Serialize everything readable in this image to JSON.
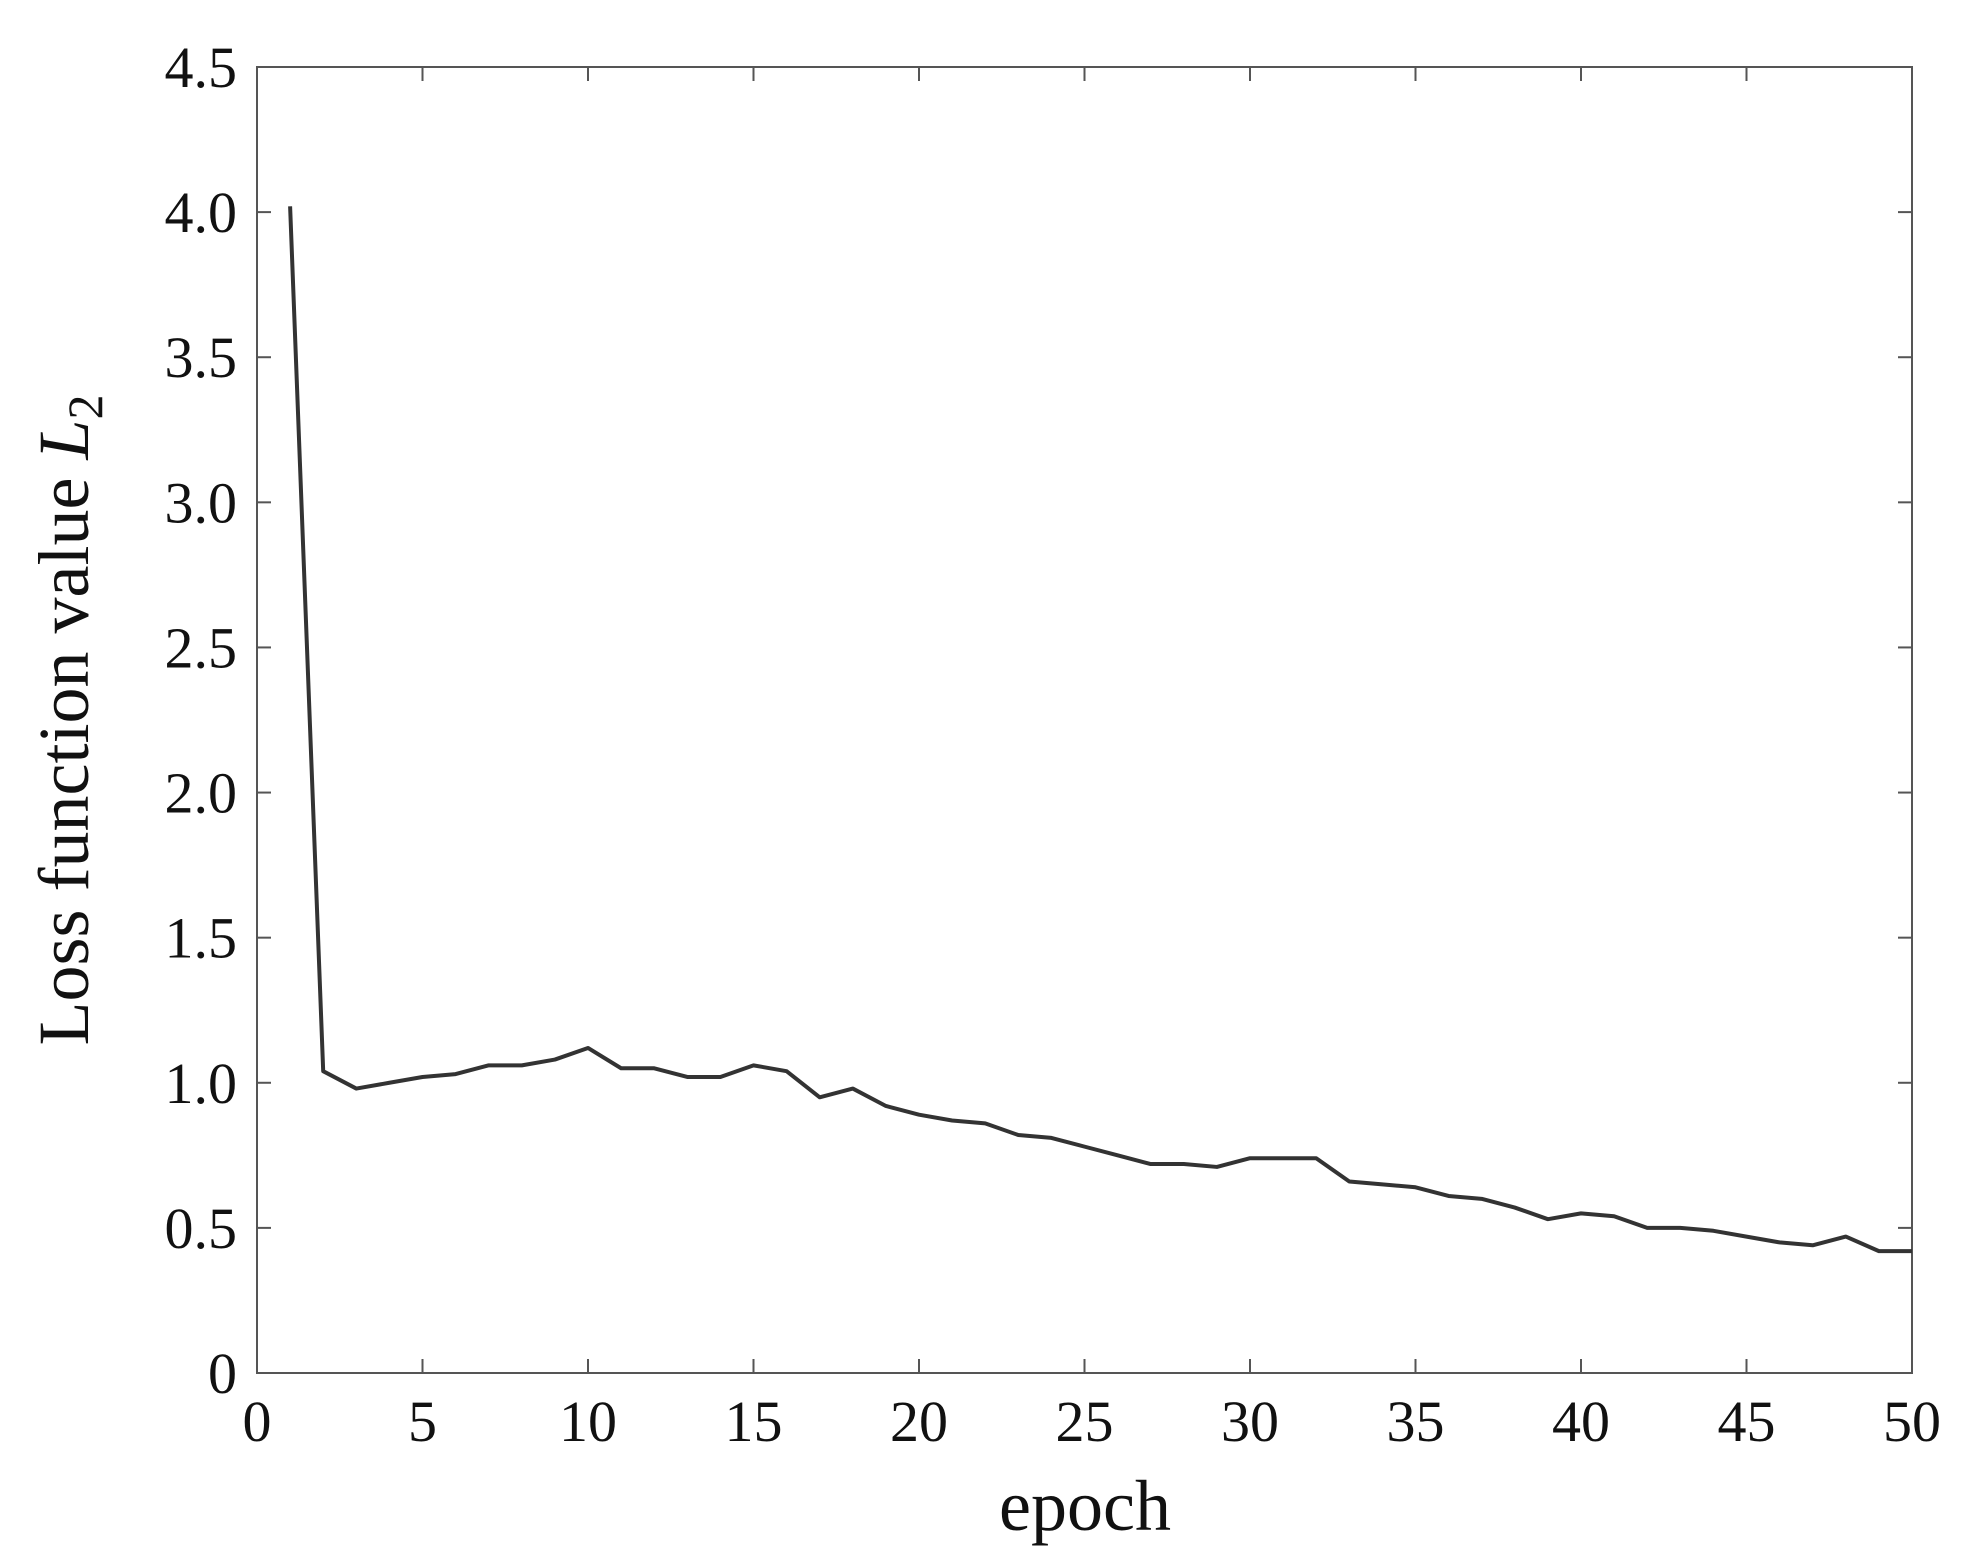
{
  "chart_data": {
    "type": "line",
    "xlabel": "epoch",
    "ylabel": "Loss function value",
    "ylabel_var": "L",
    "ylabel_sub": "2",
    "x": [
      1,
      2,
      3,
      4,
      5,
      6,
      7,
      8,
      9,
      10,
      11,
      12,
      13,
      14,
      15,
      16,
      17,
      18,
      19,
      20,
      21,
      22,
      23,
      24,
      25,
      26,
      27,
      28,
      29,
      30,
      31,
      32,
      33,
      34,
      35,
      36,
      37,
      38,
      39,
      40,
      41,
      42,
      43,
      44,
      45,
      46,
      47,
      48,
      49,
      50
    ],
    "series": [
      {
        "color": "#333333",
        "values": [
          4.02,
          1.04,
          0.98,
          1.0,
          1.02,
          1.03,
          1.06,
          1.06,
          1.08,
          1.12,
          1.05,
          1.05,
          1.02,
          1.02,
          1.06,
          1.04,
          0.95,
          0.98,
          0.92,
          0.89,
          0.87,
          0.86,
          0.82,
          0.81,
          0.78,
          0.75,
          0.72,
          0.72,
          0.71,
          0.74,
          0.74,
          0.74,
          0.66,
          0.65,
          0.64,
          0.61,
          0.6,
          0.57,
          0.53,
          0.55,
          0.54,
          0.5,
          0.5,
          0.49,
          0.47,
          0.45,
          0.44,
          0.47,
          0.42,
          0.42
        ]
      }
    ],
    "xlim": [
      0,
      50
    ],
    "ylim": [
      0,
      4.5
    ],
    "xticks": [
      0,
      5,
      10,
      15,
      20,
      25,
      30,
      35,
      40,
      45,
      50
    ],
    "yticks": [
      0,
      0.5,
      {
        "value": 1,
        "label": "1.0"
      },
      1.5,
      {
        "value": 2,
        "label": "2.0"
      },
      2.5,
      {
        "value": 3,
        "label": "3.0"
      },
      3.5,
      {
        "value": 4,
        "label": "4.0"
      },
      4.5
    ],
    "grid": false
  }
}
